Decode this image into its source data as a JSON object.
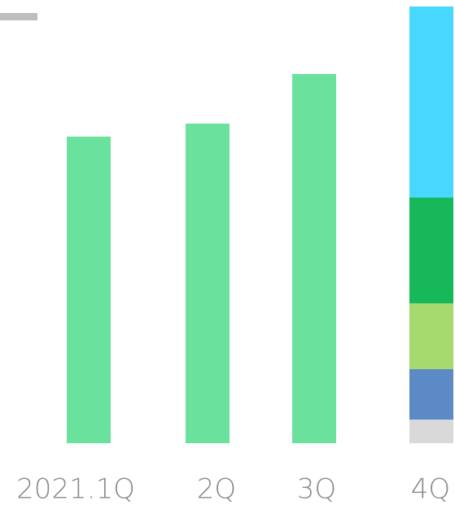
{
  "chart_data": {
    "type": "stacked-bar",
    "categories": [
      "2021.1Q",
      "2Q",
      "3Q",
      "4Q"
    ],
    "series": [
      {
        "color": "#6ae29e",
        "values": [
          377,
          393,
          454,
          null
        ]
      },
      {
        "color": "#d9d9d9",
        "values": [
          null,
          null,
          null,
          29
        ]
      },
      {
        "color": "#5b8ac4",
        "values": [
          null,
          null,
          null,
          62
        ]
      },
      {
        "color": "#a6d96e",
        "values": [
          null,
          null,
          null,
          81
        ]
      },
      {
        "color": "#17b85a",
        "values": [
          null,
          null,
          null,
          130
        ]
      },
      {
        "color": "#48d7fe",
        "values": [
          null,
          null,
          null,
          235
        ]
      }
    ]
  }
}
